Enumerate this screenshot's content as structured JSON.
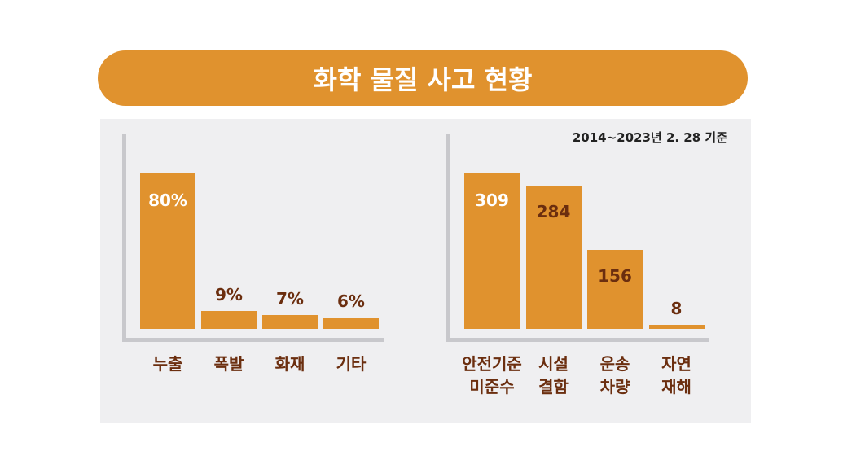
{
  "title": "화학 물질 사고 현황",
  "note": "2014~2023년 2. 28 기준",
  "chart_data": [
    {
      "type": "bar",
      "categories": [
        "누출",
        "폭발",
        "화재",
        "기타"
      ],
      "values": [
        80,
        9,
        7,
        6
      ],
      "value_labels": [
        "80%",
        "9%",
        "7%",
        "6%"
      ],
      "color": "#e0922e"
    },
    {
      "type": "bar",
      "categories": [
        "안전기준\n미준수",
        "시설\n결함",
        "운송\n차량",
        "자연\n재해"
      ],
      "values": [
        309,
        284,
        156,
        8
      ],
      "color": "#e0922e"
    }
  ]
}
